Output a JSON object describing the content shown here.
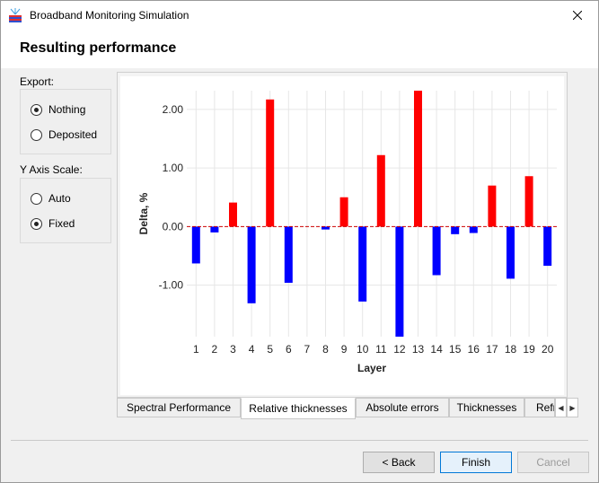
{
  "window": {
    "title": "Broadband Monitoring Simulation",
    "app_icon": "app-icon",
    "close_icon": "close-icon"
  },
  "page": {
    "heading": "Resulting performance"
  },
  "export": {
    "label": "Export:",
    "options": [
      {
        "label": "Nothing",
        "selected": true
      },
      {
        "label": "Deposited",
        "selected": false
      }
    ]
  },
  "y_axis_scale": {
    "label": "Y Axis Scale:",
    "options": [
      {
        "label": "Auto",
        "selected": false
      },
      {
        "label": "Fixed",
        "selected": true
      }
    ]
  },
  "chart_data": {
    "type": "bar",
    "xlabel": "Layer",
    "ylabel": "Delta, %",
    "categories": [
      "1",
      "2",
      "3",
      "4",
      "5",
      "6",
      "7",
      "8",
      "9",
      "10",
      "11",
      "12",
      "13",
      "14",
      "15",
      "16",
      "17",
      "18",
      "19",
      "20"
    ],
    "values": [
      -0.63,
      -0.1,
      0.41,
      -1.31,
      2.17,
      -0.96,
      0.0,
      -0.05,
      0.5,
      -1.28,
      1.22,
      -1.88,
      2.32,
      -0.83,
      -0.13,
      -0.11,
      0.7,
      -0.89,
      0.86,
      -0.67
    ],
    "yticks": [
      -1.0,
      0.0,
      1.0,
      2.0
    ],
    "ytick_labels": [
      "-1.00",
      "0.00",
      "1.00",
      "2.00"
    ],
    "ylim": [
      -1.88,
      2.32
    ],
    "positive_color": "#ff0000",
    "negative_color": "#0000ff",
    "zero_line_color": "#cc0000",
    "grid": true
  },
  "tabs": [
    {
      "label": "Spectral Performance",
      "active": false
    },
    {
      "label": "Relative thicknesses",
      "active": true
    },
    {
      "label": "Absolute errors",
      "active": false
    },
    {
      "label": "Thicknesses",
      "active": false
    },
    {
      "label": "Refr",
      "active": false
    }
  ],
  "buttons": {
    "back": "< Back",
    "finish": "Finish",
    "cancel": "Cancel"
  }
}
